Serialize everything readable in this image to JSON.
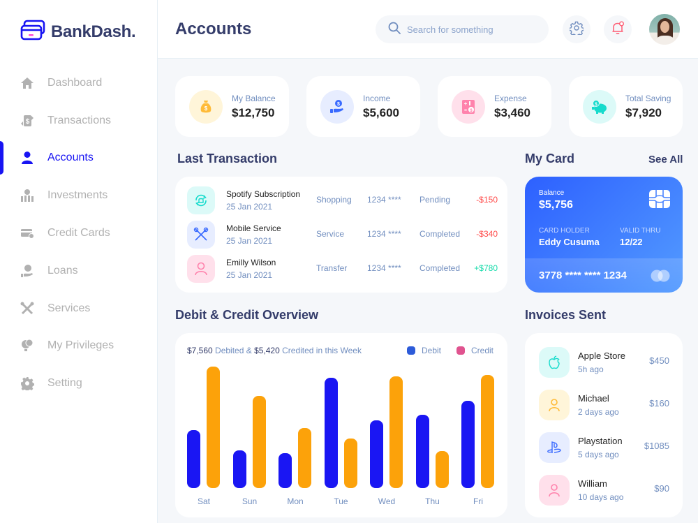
{
  "app": {
    "name": "BankDash."
  },
  "sidebar": {
    "items": [
      {
        "label": "Dashboard",
        "icon": "home-icon",
        "active": false
      },
      {
        "label": "Transactions",
        "icon": "transfer-icon",
        "active": false
      },
      {
        "label": "Accounts",
        "icon": "user-icon",
        "active": true
      },
      {
        "label": "Investments",
        "icon": "investment-icon",
        "active": false
      },
      {
        "label": "Credit Cards",
        "icon": "credit-card-icon",
        "active": false
      },
      {
        "label": "Loans",
        "icon": "loan-icon",
        "active": false
      },
      {
        "label": "Services",
        "icon": "services-icon",
        "active": false
      },
      {
        "label": "My Privileges",
        "icon": "privileges-icon",
        "active": false
      },
      {
        "label": "Setting",
        "icon": "gear-icon",
        "active": false
      }
    ]
  },
  "header": {
    "title": "Accounts",
    "search_placeholder": "Search for something"
  },
  "stats": [
    {
      "label": "My Balance",
      "value": "$12,750",
      "icon": "money-bag-icon",
      "bg": "#fff5d9",
      "fg": "#ffbb38"
    },
    {
      "label": "Income",
      "value": "$5,600",
      "icon": "hand-money-icon",
      "bg": "#e7edff",
      "fg": "#396aff"
    },
    {
      "label": "Expense",
      "value": "$3,460",
      "icon": "calculator-icon",
      "bg": "#ffe0eb",
      "fg": "#ff82ac"
    },
    {
      "label": "Total Saving",
      "value": "$7,920",
      "icon": "piggy-bank-icon",
      "bg": "#dcfaf8",
      "fg": "#16dbcc"
    }
  ],
  "last_transaction": {
    "title": "Last Transaction",
    "rows": [
      {
        "name": "Spotify Subscription",
        "date": "25 Jan 2021",
        "category": "Shopping",
        "card": "1234 ****",
        "status": "Pending",
        "amount": "-$150",
        "amount_color": "#ff4b4a",
        "icon": "subscription-icon",
        "bg": "#dcfaf8",
        "fg": "#16dbcc"
      },
      {
        "name": "Mobile Service",
        "date": "25 Jan 2021",
        "category": "Service",
        "card": "1234 ****",
        "status": "Completed",
        "amount": "-$340",
        "amount_color": "#ff4b4a",
        "icon": "tools-icon",
        "bg": "#e7edff",
        "fg": "#396aff"
      },
      {
        "name": "Emilly Wilson",
        "date": "25 Jan 2021",
        "category": "Transfer",
        "card": "1234 ****",
        "status": "Completed",
        "amount": "+$780",
        "amount_color": "#16dbaa",
        "icon": "user-icon",
        "bg": "#ffe0eb",
        "fg": "#ff82ac"
      }
    ]
  },
  "my_card": {
    "title": "My Card",
    "see_all": "See All",
    "balance_label": "Balance",
    "balance": "$5,756",
    "holder_label": "CARD HOLDER",
    "holder": "Eddy Cusuma",
    "valid_label": "VALID THRU",
    "valid": "12/22",
    "number": "3778 **** **** 1234"
  },
  "overview": {
    "title": "Debit & Credit Overview",
    "summary": {
      "debited": "$7,560",
      "debited_text": " Debited & ",
      "credited": "$5,420",
      "credited_text": " Credited in this Week"
    },
    "legend": [
      {
        "label": "Debit",
        "color": "#1a16f3"
      },
      {
        "label": "Credit",
        "color": "#fca20a"
      }
    ],
    "legend_dots": [
      "#2d5bd9",
      "#e0538f"
    ]
  },
  "chart_data": {
    "type": "bar",
    "title": "Debit & Credit Overview",
    "categories": [
      "Sat",
      "Sun",
      "Mon",
      "Tue",
      "Wed",
      "Thu",
      "Fri"
    ],
    "series": [
      {
        "name": "Debit",
        "color": "#1a16f3",
        "values": [
          83,
          54,
          50,
          158,
          97,
          105,
          125
        ]
      },
      {
        "name": "Credit",
        "color": "#fca20a",
        "values": [
          174,
          132,
          86,
          71,
          160,
          53,
          162
        ]
      }
    ],
    "xlabel": "",
    "ylabel": "",
    "grid": false,
    "legend_position": "top-right",
    "note": "values are relative bar heights in px (no y-axis shown)"
  },
  "invoices": {
    "title": "Invoices Sent",
    "rows": [
      {
        "name": "Apple Store",
        "time": "5h ago",
        "amount": "$450",
        "icon": "apple-icon",
        "bg": "#dcfaf8",
        "fg": "#16dbcc"
      },
      {
        "name": "Michael",
        "time": "2 days ago",
        "amount": "$160",
        "icon": "user-icon",
        "bg": "#fff5d9",
        "fg": "#ffbb38"
      },
      {
        "name": "Playstation",
        "time": "5 days ago",
        "amount": "$1085",
        "icon": "playstation-icon",
        "bg": "#e7edff",
        "fg": "#396aff"
      },
      {
        "name": "William",
        "time": "10 days ago",
        "amount": "$90",
        "icon": "user-icon",
        "bg": "#ffe0eb",
        "fg": "#ff82ac"
      }
    ]
  }
}
